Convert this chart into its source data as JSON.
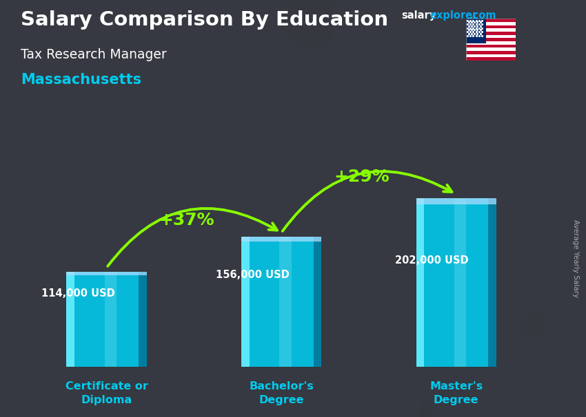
{
  "title_main": "Salary Comparison By Education",
  "title_sub": "Tax Research Manager",
  "title_location": "Massachusetts",
  "watermark_salary": "salary",
  "watermark_explorer": "explorer",
  "watermark_com": ".com",
  "ylabel_side": "Average Yearly Salary",
  "categories": [
    "Certificate or\nDiploma",
    "Bachelor's\nDegree",
    "Master's\nDegree"
  ],
  "values": [
    114000,
    156000,
    202000
  ],
  "value_labels": [
    "114,000 USD",
    "156,000 USD",
    "202,000 USD"
  ],
  "pct_labels": [
    "+37%",
    "+29%"
  ],
  "bar_color_main": "#00ccee",
  "bar_color_light": "#66eeff",
  "bar_color_dark": "#007799",
  "bar_color_side": "#004466",
  "bar_width": 0.55,
  "bg_color": "#3a3a4a",
  "title_color": "#ffffff",
  "sub_color": "#ffffff",
  "location_color": "#00ccee",
  "label_color": "#ffffff",
  "category_color": "#00ccee",
  "pct_color": "#88ff00",
  "arrow_color": "#88ff00",
  "watermark_salary_color": "#ffffff",
  "watermark_explorer_color": "#00aaee",
  "watermark_com_color": "#00aaee",
  "side_label_color": "#aaaaaa",
  "ylim": [
    0,
    260000
  ],
  "bar_positions": [
    1.0,
    2.2,
    3.4
  ],
  "fig_width": 8.5,
  "fig_height": 6.06,
  "dpi": 100
}
